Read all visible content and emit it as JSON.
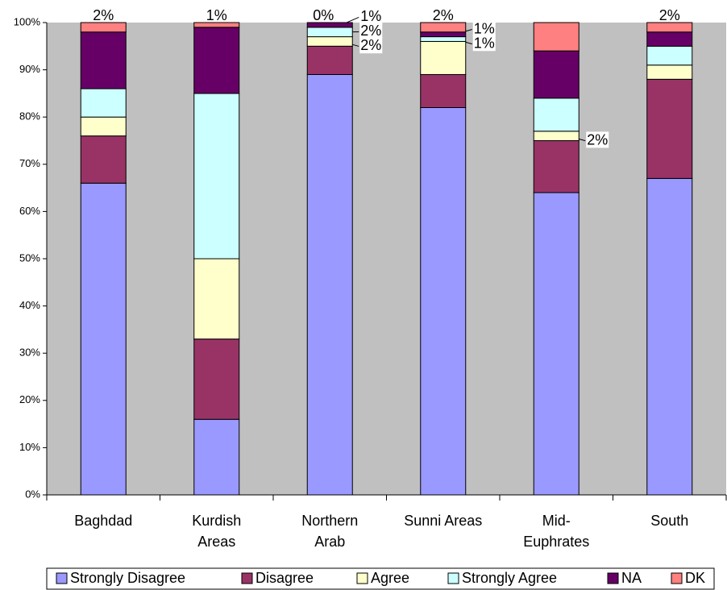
{
  "chart_data": {
    "type": "stacked_bar",
    "categories": [
      "Baghdad",
      "Kurdish\nAreas",
      "Northern\nArab",
      "Sunni Areas",
      "Mid-\nEuphrates",
      "South"
    ],
    "series": [
      {
        "name": "Strongly Disagree",
        "color": "#9999ff",
        "values": [
          66,
          16,
          89,
          82,
          64,
          67
        ],
        "value_labels": [
          "66%",
          "16%",
          "89%",
          "82%",
          "64%",
          "67%"
        ]
      },
      {
        "name": "Disagree",
        "color": "#993366",
        "values": [
          10,
          17,
          6,
          7,
          11,
          21
        ],
        "value_labels": [
          "10%",
          "17%",
          "6%",
          "7%",
          "11%",
          "21%"
        ]
      },
      {
        "name": "Agree",
        "color": "#ffffcc",
        "values": [
          4,
          17,
          2,
          7,
          2,
          3
        ],
        "value_labels": [
          "4%",
          "17%",
          "2%",
          "7%",
          "2%",
          "3%"
        ]
      },
      {
        "name": "Strongly Agree",
        "color": "#ccffff",
        "values": [
          6,
          35,
          2,
          1,
          7,
          4
        ],
        "value_labels": [
          "6%",
          "35%",
          "2%",
          "1%",
          "7%",
          "4%"
        ]
      },
      {
        "name": "NA",
        "color": "#660066",
        "values": [
          12,
          14,
          1,
          1,
          10,
          3
        ],
        "value_labels": [
          "12%",
          "14%",
          "1%",
          "1%",
          "10%",
          "3%"
        ]
      },
      {
        "name": "DK",
        "color": "#ff8080",
        "values": [
          2,
          1,
          0,
          2,
          6,
          2
        ],
        "value_labels": [
          "2%",
          "1%",
          "0%",
          "2%",
          "6%",
          "2%"
        ]
      }
    ],
    "ylim": [
      0,
      100
    ],
    "yticks": [
      {
        "value": 0,
        "label": "0%"
      },
      {
        "value": 10,
        "label": "10%"
      },
      {
        "value": 20,
        "label": "20%"
      },
      {
        "value": 30,
        "label": "30%"
      },
      {
        "value": 40,
        "label": "40%"
      },
      {
        "value": 50,
        "label": "50%"
      },
      {
        "value": 60,
        "label": "60%"
      },
      {
        "value": 70,
        "label": "70%"
      },
      {
        "value": 80,
        "label": "80%"
      },
      {
        "value": 90,
        "label": "90%"
      },
      {
        "value": 100,
        "label": "100%"
      }
    ],
    "grid": false,
    "legend": "bottom"
  }
}
